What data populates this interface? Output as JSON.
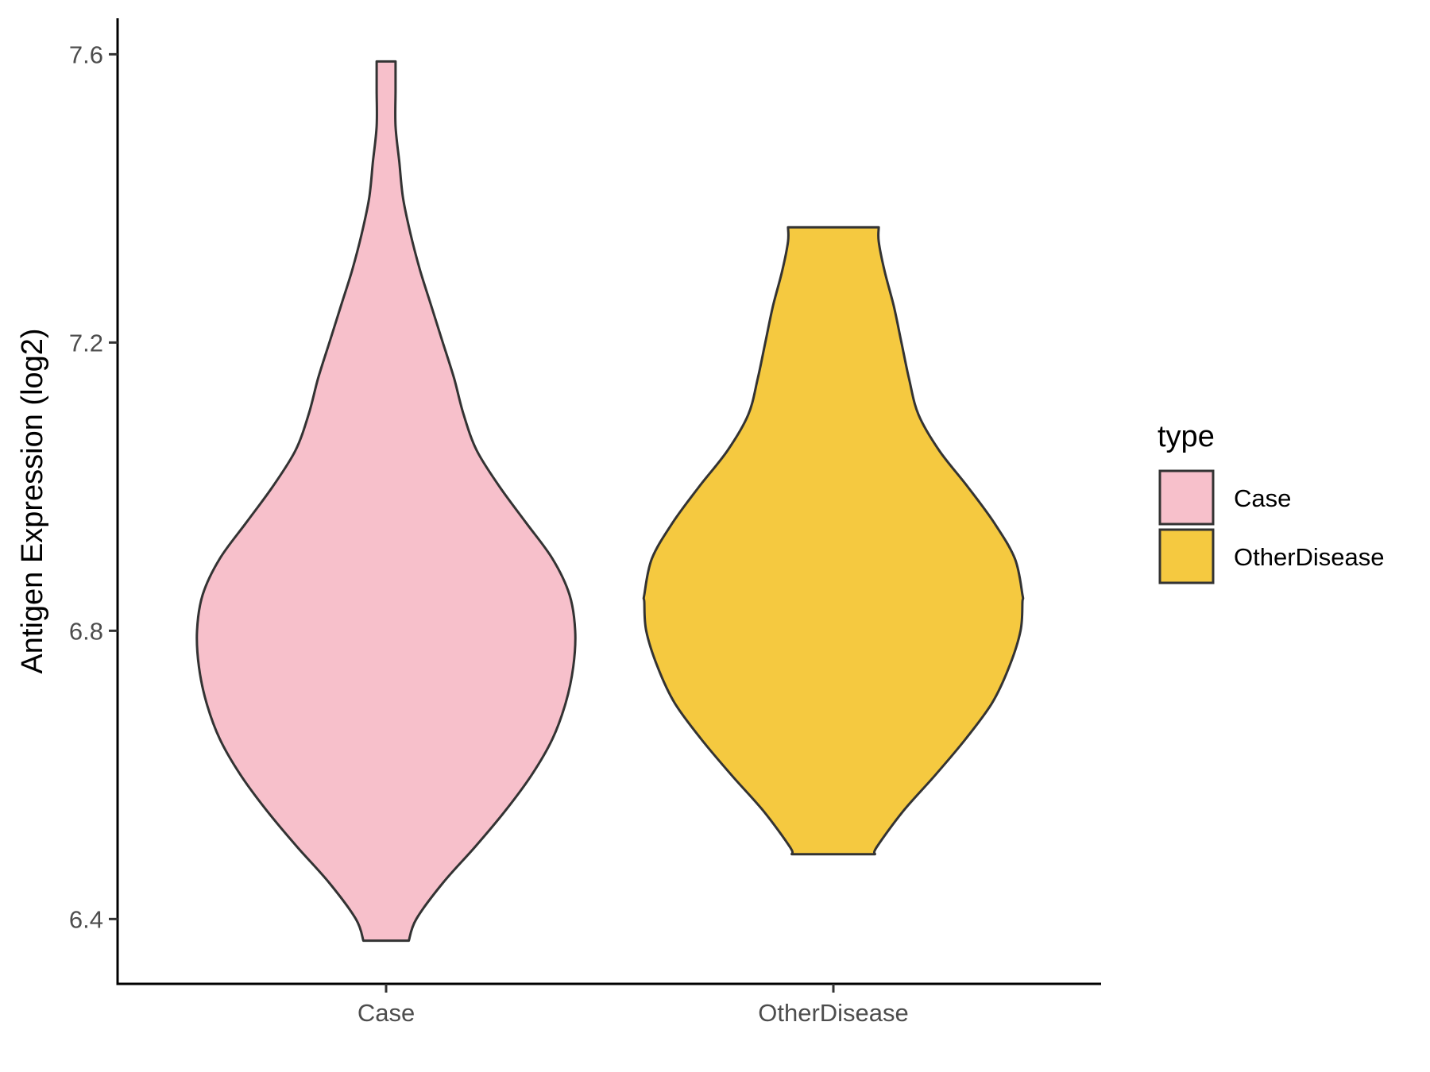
{
  "chart_data": {
    "type": "violin",
    "xlabel": "",
    "ylabel": "Antigen Expression (log2)",
    "categories": [
      "Case",
      "OtherDisease"
    ],
    "ylim": [
      6.31,
      7.65
    ],
    "y_ticks": [
      "6.4",
      "6.8",
      "7.2",
      "7.6"
    ],
    "grid": false,
    "legend": {
      "title": "type",
      "position": "right",
      "entries": [
        "Case",
        "OtherDisease"
      ]
    },
    "colors": {
      "Case": "#F7C0CB",
      "OtherDisease": "#F5C940",
      "outline": "#333333"
    },
    "series": [
      {
        "name": "Case",
        "y_min": 6.37,
        "y_max": 7.59,
        "profile": [
          [
            6.37,
            0.12
          ],
          [
            6.4,
            0.16
          ],
          [
            6.45,
            0.3
          ],
          [
            6.5,
            0.47
          ],
          [
            6.55,
            0.63
          ],
          [
            6.6,
            0.77
          ],
          [
            6.65,
            0.88
          ],
          [
            6.7,
            0.95
          ],
          [
            6.75,
            0.99
          ],
          [
            6.8,
            1.0
          ],
          [
            6.85,
            0.97
          ],
          [
            6.9,
            0.88
          ],
          [
            6.95,
            0.74
          ],
          [
            7.0,
            0.6
          ],
          [
            7.05,
            0.48
          ],
          [
            7.1,
            0.41
          ],
          [
            7.15,
            0.36
          ],
          [
            7.2,
            0.3
          ],
          [
            7.25,
            0.24
          ],
          [
            7.3,
            0.18
          ],
          [
            7.35,
            0.13
          ],
          [
            7.4,
            0.09
          ],
          [
            7.45,
            0.07
          ],
          [
            7.5,
            0.05
          ],
          [
            7.55,
            0.05
          ],
          [
            7.59,
            0.05
          ]
        ]
      },
      {
        "name": "OtherDisease",
        "y_min": 6.49,
        "y_max": 7.36,
        "profile": [
          [
            6.49,
            0.22
          ],
          [
            6.5,
            0.23
          ],
          [
            6.55,
            0.37
          ],
          [
            6.6,
            0.54
          ],
          [
            6.65,
            0.7
          ],
          [
            6.7,
            0.84
          ],
          [
            6.75,
            0.93
          ],
          [
            6.8,
            0.99
          ],
          [
            6.84,
            1.0
          ],
          [
            6.85,
            1.0
          ],
          [
            6.9,
            0.96
          ],
          [
            6.95,
            0.85
          ],
          [
            7.0,
            0.71
          ],
          [
            7.05,
            0.56
          ],
          [
            7.1,
            0.45
          ],
          [
            7.15,
            0.4
          ],
          [
            7.2,
            0.36
          ],
          [
            7.25,
            0.32
          ],
          [
            7.3,
            0.27
          ],
          [
            7.34,
            0.24
          ],
          [
            7.36,
            0.24
          ]
        ]
      }
    ]
  }
}
